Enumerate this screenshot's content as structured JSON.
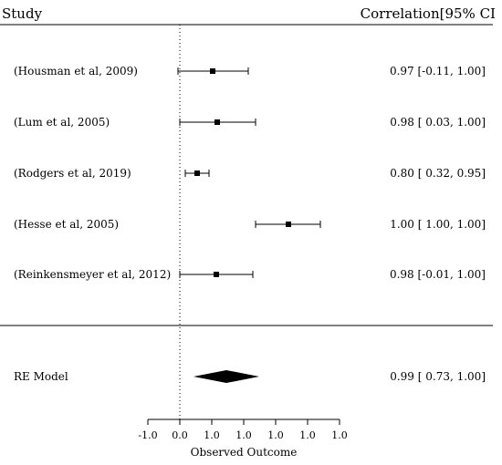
{
  "chart_data": {
    "type": "forest",
    "headers": {
      "left": "Study",
      "right": "Correlation[95% CI"
    },
    "studies": [
      {
        "label": "(Housman et al, 2009)",
        "estimate": 0.97,
        "ci": [
          -0.11,
          1.0
        ],
        "ci_text": "0.97 [-0.11, 1.00]"
      },
      {
        "label": "(Lum et al, 2005)",
        "estimate": 0.98,
        "ci": [
          0.03,
          1.0
        ],
        "ci_text": "0.98 [ 0.03, 1.00]"
      },
      {
        "label": "(Rodgers et al, 2019)",
        "estimate": 0.8,
        "ci": [
          0.32,
          0.95
        ],
        "ci_text": "0.80 [ 0.32, 0.95]"
      },
      {
        "label": "(Hesse et al, 2005)",
        "estimate": 1.0,
        "ci": [
          1.0,
          1.0
        ],
        "ci_text": "1.00 [ 1.00, 1.00]"
      },
      {
        "label": "(Reinkensmeyer et al, 2012)",
        "estimate": 0.98,
        "ci": [
          -0.01,
          1.0
        ],
        "ci_text": "0.98 [-0.01, 1.00]"
      }
    ],
    "summary": {
      "label": "RE Model",
      "estimate": 0.99,
      "ci": [
        0.73,
        1.0
      ],
      "ci_text": "0.99 [ 0.73, 1.00]"
    },
    "x_ticks": [
      "-1.0",
      "0.0",
      "1.0",
      "1.0",
      "1.0",
      "1.0",
      "1.0"
    ],
    "xlabel": "Observed Outcome",
    "reference_line": "dotted vertical at 0.0"
  }
}
